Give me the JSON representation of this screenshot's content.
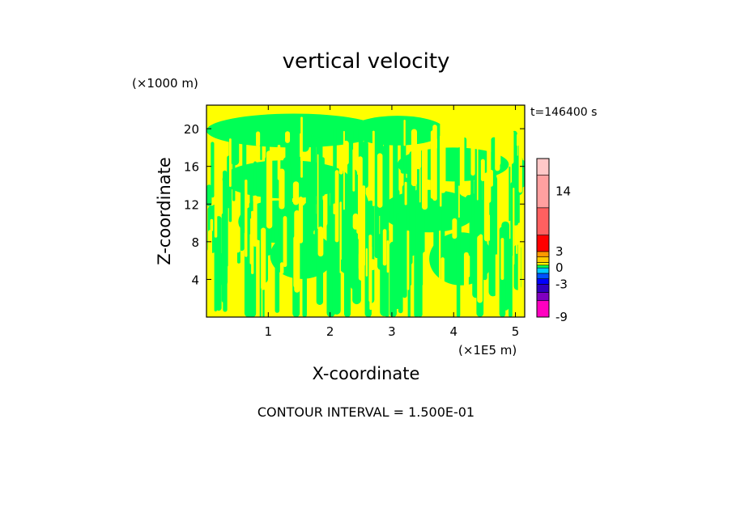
{
  "chart_data": {
    "type": "heatmap",
    "title": "vertical velocity",
    "time_label": "t=146400 s",
    "xlabel": "X-coordinate",
    "ylabel": "Z-coordinate",
    "x_unit_label": "(×1E5 m)",
    "y_unit_label": "(×1000 m)",
    "xlim": [
      0,
      5.15
    ],
    "ylim": [
      0,
      22.5
    ],
    "x_ticks": [
      "1",
      "2",
      "3",
      "4",
      "5"
    ],
    "x_tick_values": [
      1,
      2,
      3,
      4,
      5
    ],
    "y_ticks": [
      "4",
      "8",
      "12",
      "16",
      "20"
    ],
    "y_tick_values": [
      4,
      8,
      12,
      16,
      20
    ],
    "field_levels": {
      "negative_color": "#00ff55",
      "positive_color": "#ffff00",
      "description_levels": [
        "< 0",
        "> 0"
      ]
    },
    "colorbar": {
      "tick_labels": [
        "14",
        "3",
        "0",
        "-3",
        "-9"
      ],
      "tick_values": [
        14,
        3,
        0,
        -3,
        -9
      ],
      "range": [
        -9,
        20
      ],
      "bands": [
        {
          "from": -9,
          "to": -6,
          "color": "#ff00c0"
        },
        {
          "from": -6,
          "to": -4.5,
          "color": "#8000c0"
        },
        {
          "from": -4.5,
          "to": -3,
          "color": "#3000c0"
        },
        {
          "from": -3,
          "to": -2,
          "color": "#0000ff"
        },
        {
          "from": -2,
          "to": -1,
          "color": "#0050ff"
        },
        {
          "from": -1,
          "to": 0,
          "color": "#00c8ff"
        },
        {
          "from": 0,
          "to": 0.5,
          "color": "#00ff55"
        },
        {
          "from": 0.5,
          "to": 1,
          "color": "#ffff00"
        },
        {
          "from": 1,
          "to": 2,
          "color": "#ffcc00"
        },
        {
          "from": 2,
          "to": 3,
          "color": "#ff9900"
        },
        {
          "from": 3,
          "to": 6,
          "color": "#ff0000"
        },
        {
          "from": 6,
          "to": 11,
          "color": "#ff6060"
        },
        {
          "from": 11,
          "to": 17,
          "color": "#ffa0a0"
        },
        {
          "from": 17,
          "to": 20,
          "color": "#ffc8c8"
        }
      ]
    },
    "footer": "CONTOUR INTERVAL = 1.500E-01"
  }
}
